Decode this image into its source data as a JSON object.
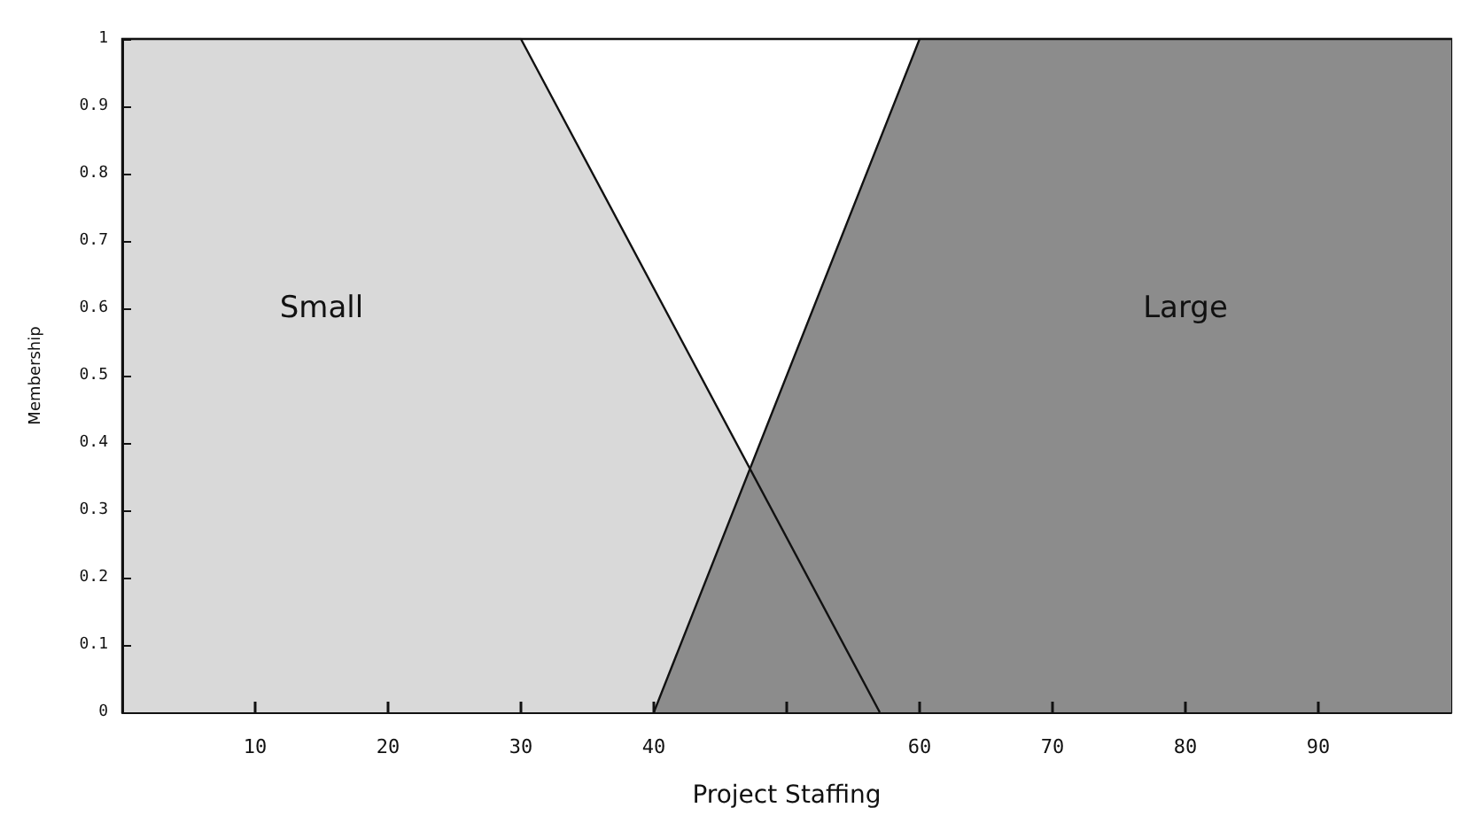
{
  "chart_data": {
    "type": "area",
    "xlabel": "Project Staffing",
    "ylabel": "Membership",
    "series": [
      {
        "name": "Small",
        "color": "#d9d9d9",
        "x": [
          0,
          30,
          57
        ],
        "values": [
          1,
          1,
          0
        ]
      },
      {
        "name": "Large",
        "color": "#8c8c8c",
        "x": [
          40,
          60,
          100
        ],
        "values": [
          0,
          1,
          1
        ]
      }
    ],
    "xlim": [
      0,
      100
    ],
    "xticks": [
      10,
      20,
      30,
      40,
      {
        "value": 50,
        "label": null
      },
      60,
      70,
      80,
      90
    ],
    "ylim": [
      0,
      1
    ],
    "yticks": [
      0,
      0.1,
      0.2,
      0.3,
      0.4,
      0.5,
      0.6,
      0.7,
      0.8,
      0.9,
      1
    ],
    "grid": false,
    "legend": false
  }
}
